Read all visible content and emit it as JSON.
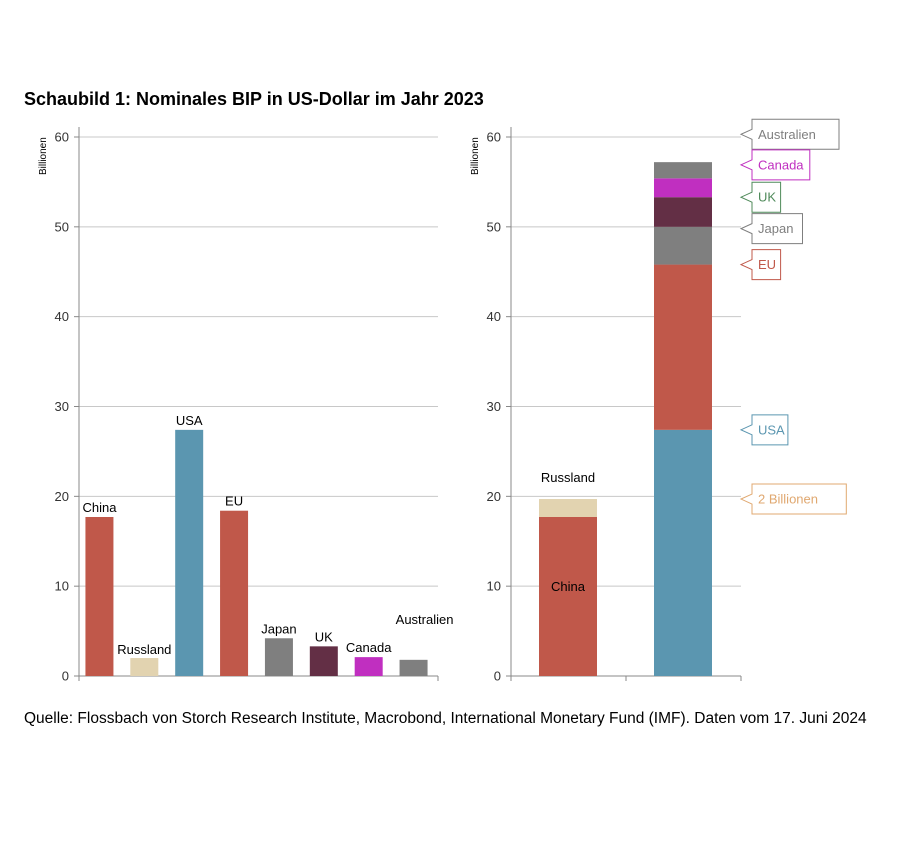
{
  "title": "Schaubild 1: Nominales BIP in US-Dollar im Jahr 2023",
  "source": "Quelle: Flossbach von Storch Research Institute, Macrobond, International Monetary Fund (IMF). Daten vom 17. Juni 2024",
  "colors": {
    "China": "#c0584a",
    "Russland": "#e2d3b0",
    "USA": "#5b96b0",
    "EU": "#c0584a",
    "Japan": "#7f7f7f",
    "UK": "#632f45",
    "Canada": "#c02fc0",
    "Australien": "#7f7f7f",
    "grid": "#c8c8c8",
    "axis": "#888888"
  },
  "chart_data": [
    {
      "type": "bar",
      "title": "",
      "ylabel": "Billionen",
      "ylim": [
        0,
        60
      ],
      "yticks": [
        "0",
        "10",
        "20",
        "30",
        "40",
        "50",
        "60"
      ],
      "categories": [
        "China",
        "Russland",
        "USA",
        "EU",
        "Japan",
        "UK",
        "Canada",
        "Australien"
      ],
      "values": [
        17.7,
        2.0,
        27.4,
        18.4,
        4.2,
        3.3,
        2.1,
        1.8
      ]
    },
    {
      "type": "stacked_bar",
      "ylabel": "Billionen",
      "ylim": [
        0,
        60
      ],
      "yticks": [
        "0",
        "10",
        "20",
        "30",
        "40",
        "50",
        "60"
      ],
      "stacks": [
        {
          "segments": [
            {
              "name": "China",
              "value": 17.7
            },
            {
              "name": "Russland",
              "value": 2.0
            }
          ],
          "inner_label": "China",
          "top_label": "Russland"
        },
        {
          "segments": [
            {
              "name": "USA",
              "value": 27.4
            },
            {
              "name": "EU",
              "value": 18.4
            },
            {
              "name": "Japan",
              "value": 4.2
            },
            {
              "name": "UK",
              "value": 3.3
            },
            {
              "name": "Canada",
              "value": 2.1
            },
            {
              "name": "Australien",
              "value": 1.8
            }
          ]
        }
      ],
      "callouts": [
        {
          "text": "Australien",
          "at": 60.3,
          "color": "#7f7f7f"
        },
        {
          "text": "Canada",
          "at": 56.9,
          "color": "#c02fc0"
        },
        {
          "text": "UK",
          "at": 53.3,
          "color": "#4f8a5a"
        },
        {
          "text": "Japan",
          "at": 49.8,
          "color": "#7f7f7f"
        },
        {
          "text": "EU",
          "at": 45.8,
          "color": "#c0584a"
        },
        {
          "text": "USA",
          "at": 27.4,
          "color": "#5b96b0"
        },
        {
          "text": "2 Billionen",
          "at": 19.7,
          "color": "#e0a870"
        }
      ]
    }
  ]
}
